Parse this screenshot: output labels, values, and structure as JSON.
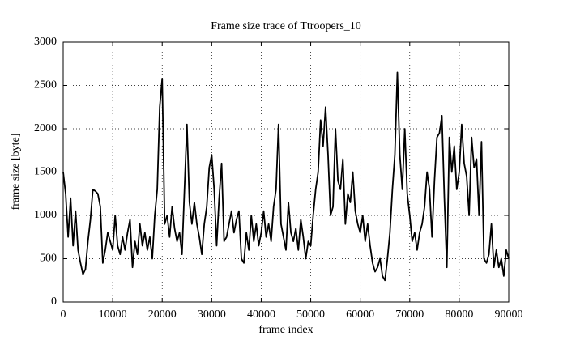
{
  "chart_data": {
    "type": "line",
    "title": "Frame size trace of Ttroopers_10",
    "xlabel": "frame index",
    "ylabel": "frame size [byte]",
    "x": [
      0,
      500,
      1000,
      1500,
      2000,
      2500,
      3000,
      3500,
      4000,
      4500,
      5000,
      5500,
      6000,
      6500,
      7000,
      7500,
      8000,
      8500,
      9000,
      9500,
      10000,
      10500,
      11000,
      11500,
      12000,
      12500,
      13000,
      13500,
      14000,
      14500,
      15000,
      15500,
      16000,
      16500,
      17000,
      17500,
      18000,
      18500,
      19000,
      19500,
      20000,
      20500,
      21000,
      21500,
      22000,
      22500,
      23000,
      23500,
      24000,
      24500,
      25000,
      25500,
      26000,
      26500,
      27000,
      27500,
      28000,
      28500,
      29000,
      29500,
      30000,
      30500,
      31000,
      31500,
      32000,
      32500,
      33000,
      33500,
      34000,
      34500,
      35000,
      35500,
      36000,
      36500,
      37000,
      37500,
      38000,
      38500,
      39000,
      39500,
      40000,
      40500,
      41000,
      41500,
      42000,
      42500,
      43000,
      43500,
      44000,
      44500,
      45000,
      45500,
      46000,
      46500,
      47000,
      47500,
      48000,
      48500,
      49000,
      49500,
      50000,
      50500,
      51000,
      51500,
      52000,
      52500,
      53000,
      53500,
      54000,
      54500,
      55000,
      55500,
      56000,
      56500,
      57000,
      57500,
      58000,
      58500,
      59000,
      59500,
      60000,
      60500,
      61000,
      61500,
      62000,
      62500,
      63000,
      63500,
      64000,
      64500,
      65000,
      65500,
      66000,
      66500,
      67000,
      67500,
      68000,
      68500,
      69000,
      69500,
      70000,
      70500,
      71000,
      71500,
      72000,
      72500,
      73000,
      73500,
      74000,
      74500,
      75000,
      75500,
      76000,
      76500,
      77000,
      77500,
      78000,
      78500,
      79000,
      79500,
      80000,
      80500,
      81000,
      81500,
      82000,
      82500,
      83000,
      83500,
      84000,
      84500,
      85000,
      85500,
      86000,
      86500,
      87000,
      87500,
      88000,
      88500,
      89000,
      89500,
      90000
    ],
    "series": [
      {
        "name": "Ttroopers_10",
        "color": "#000000",
        "values": [
          1500,
          1250,
          750,
          1200,
          650,
          1050,
          600,
          450,
          320,
          380,
          700,
          950,
          1300,
          1280,
          1250,
          1100,
          450,
          600,
          800,
          700,
          600,
          1000,
          650,
          550,
          750,
          600,
          800,
          950,
          400,
          700,
          550,
          900,
          650,
          800,
          600,
          750,
          500,
          1000,
          1300,
          2250,
          2580,
          900,
          1000,
          750,
          1100,
          850,
          700,
          800,
          550,
          1300,
          2050,
          1150,
          900,
          1150,
          900,
          750,
          550,
          900,
          1100,
          1550,
          1700,
          1300,
          650,
          1200,
          1600,
          700,
          750,
          900,
          1050,
          800,
          950,
          1050,
          500,
          450,
          800,
          600,
          1000,
          700,
          900,
          650,
          800,
          1050,
          750,
          900,
          700,
          1100,
          1300,
          2050,
          900,
          750,
          600,
          1150,
          800,
          700,
          850,
          600,
          950,
          750,
          500,
          700,
          650,
          1000,
          1300,
          1500,
          2100,
          1800,
          2250,
          1700,
          1000,
          1100,
          2000,
          1400,
          1300,
          1650,
          900,
          1250,
          1150,
          1500,
          1050,
          900,
          800,
          1000,
          700,
          900,
          650,
          450,
          350,
          400,
          500,
          300,
          250,
          500,
          800,
          1300,
          1700,
          2650,
          1700,
          1300,
          2000,
          1250,
          1000,
          700,
          800,
          600,
          800,
          900,
          1100,
          1500,
          1300,
          750,
          1400,
          1900,
          1950,
          2150,
          1200,
          400,
          1900,
          1500,
          1800,
          1300,
          1500,
          2050,
          1600,
          1450,
          1000,
          1900,
          1550,
          1650,
          1000,
          1850,
          500,
          450,
          550,
          900,
          400,
          600,
          400,
          500,
          300,
          600,
          500
        ]
      }
    ],
    "xlim": [
      0,
      90000
    ],
    "ylim": [
      0,
      3000
    ],
    "xticks": [
      0,
      10000,
      20000,
      30000,
      40000,
      50000,
      60000,
      70000,
      80000,
      90000
    ],
    "yticks": [
      0,
      500,
      1000,
      1500,
      2000,
      2500,
      3000
    ],
    "grid": true
  }
}
